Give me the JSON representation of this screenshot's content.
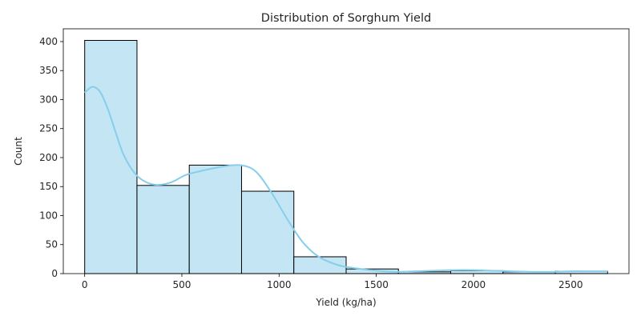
{
  "chart_data": {
    "type": "bar",
    "title": "Distribution of Sorghum Yield",
    "xlabel": "Yield (kg/ha)",
    "ylabel": "Count",
    "xlim": [
      -110,
      2800
    ],
    "ylim": [
      0,
      422
    ],
    "xticks": [
      0,
      500,
      1000,
      1500,
      2000,
      2500
    ],
    "yticks": [
      0,
      50,
      100,
      150,
      200,
      250,
      300,
      350,
      400
    ],
    "bin_edges": [
      0,
      269,
      538,
      807,
      1076,
      1345,
      1614,
      1883,
      2152,
      2421,
      2690
    ],
    "values": [
      402,
      152,
      187,
      142,
      29,
      8,
      3,
      5,
      3,
      4
    ],
    "kde": {
      "x": [
        0,
        40,
        80,
        120,
        160,
        200,
        260,
        320,
        380,
        450,
        520,
        600,
        700,
        800,
        880,
        960,
        1040,
        1120,
        1200,
        1300,
        1400,
        1500,
        1600,
        1700,
        1800,
        1900,
        2000,
        2100,
        2200,
        2300,
        2400,
        2500,
        2600,
        2690
      ],
      "y": [
        312,
        322,
        313,
        283,
        243,
        205,
        172,
        157,
        153,
        158,
        170,
        177,
        184,
        187,
        176,
        140,
        95,
        55,
        30,
        15,
        9,
        5,
        3,
        4,
        5,
        6,
        6,
        5,
        4,
        3,
        3,
        4,
        4,
        4
      ]
    },
    "colors": {
      "bar_fill": "#c3e5f4",
      "bar_edge": "#000000",
      "kde_line": "#87ceeb"
    },
    "grid": false,
    "legend": "none"
  }
}
